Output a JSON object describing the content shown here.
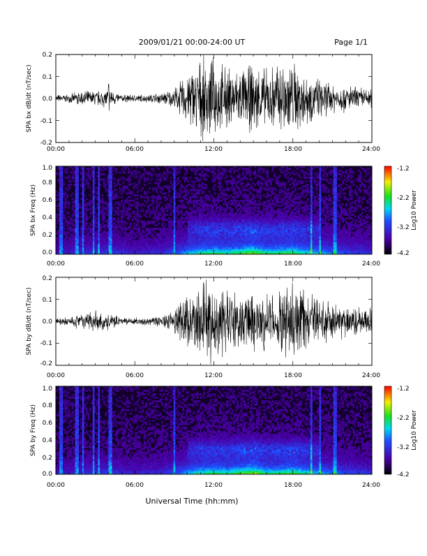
{
  "header": {
    "title": "2009/01/21   00:00-24:00 UT",
    "page": "Page 1/1"
  },
  "xlabel": "Universal Time (hh:mm)",
  "chart_data": [
    {
      "type": "line",
      "ylabel": "SPA bx dB/dt (nT/sec)",
      "xlim": [
        0,
        24
      ],
      "ylim": [
        -0.2,
        0.2
      ],
      "x_ticks": [
        "00:00",
        "06:00",
        "12:00",
        "18:00",
        "24:00"
      ],
      "y_ticks": [
        "-0.2",
        "-0.1",
        "0.0",
        "0.1",
        "0.2"
      ],
      "amplitude_envelope": {
        "x": [
          0,
          1,
          2,
          3,
          4,
          5,
          6,
          7,
          8,
          9,
          10,
          11,
          12,
          13,
          14,
          15,
          16,
          17,
          18,
          19,
          20,
          21,
          22,
          23,
          24
        ],
        "y": [
          0.02,
          0.02,
          0.04,
          0.04,
          0.05,
          0.02,
          0.02,
          0.02,
          0.03,
          0.05,
          0.14,
          0.2,
          0.2,
          0.16,
          0.15,
          0.18,
          0.15,
          0.2,
          0.2,
          0.14,
          0.1,
          0.08,
          0.07,
          0.06,
          0.05
        ]
      }
    },
    {
      "type": "heatmap",
      "ylabel": "SPA bx Freq (Hz)",
      "xlim": [
        0,
        24
      ],
      "ylim": [
        0,
        1.0
      ],
      "x_ticks": [
        "00:00",
        "06:00",
        "12:00",
        "18:00",
        "24:00"
      ],
      "y_ticks": [
        "0.0",
        "0.2",
        "0.4",
        "0.6",
        "0.8",
        "1.0"
      ],
      "colorbar": {
        "range": [
          -4.2,
          -1.2
        ],
        "ticks": [
          "-1.2",
          "-2.2",
          "-3.2",
          "-4.2"
        ],
        "label": "Log10 Power"
      }
    },
    {
      "type": "line",
      "ylabel": "SPA by dB/dt (nT/sec)",
      "xlim": [
        0,
        24
      ],
      "ylim": [
        -0.2,
        0.2
      ],
      "x_ticks": [
        "00:00",
        "06:00",
        "12:00",
        "18:00",
        "24:00"
      ],
      "y_ticks": [
        "-0.2",
        "-0.1",
        "0.0",
        "0.1",
        "0.2"
      ],
      "amplitude_envelope": {
        "x": [
          0,
          1,
          2,
          3,
          4,
          5,
          6,
          7,
          8,
          9,
          10,
          11,
          12,
          13,
          14,
          15,
          16,
          17,
          18,
          19,
          20,
          21,
          22,
          23,
          24
        ],
        "y": [
          0.02,
          0.02,
          0.04,
          0.05,
          0.05,
          0.02,
          0.02,
          0.02,
          0.03,
          0.06,
          0.16,
          0.2,
          0.2,
          0.17,
          0.16,
          0.19,
          0.16,
          0.2,
          0.2,
          0.15,
          0.12,
          0.1,
          0.09,
          0.08,
          0.07
        ]
      }
    },
    {
      "type": "heatmap",
      "ylabel": "SPA by Freq (Hz)",
      "xlim": [
        0,
        24
      ],
      "ylim": [
        0,
        1.0
      ],
      "x_ticks": [
        "00:00",
        "06:00",
        "12:00",
        "18:00",
        "24:00"
      ],
      "y_ticks": [
        "0.0",
        "0.2",
        "0.4",
        "0.6",
        "0.8",
        "1.0"
      ],
      "colorbar": {
        "range": [
          -4.2,
          -1.2
        ],
        "ticks": [
          "-1.2",
          "-2.2",
          "-3.2",
          "-4.2"
        ],
        "label": "Log10 Power"
      }
    }
  ]
}
